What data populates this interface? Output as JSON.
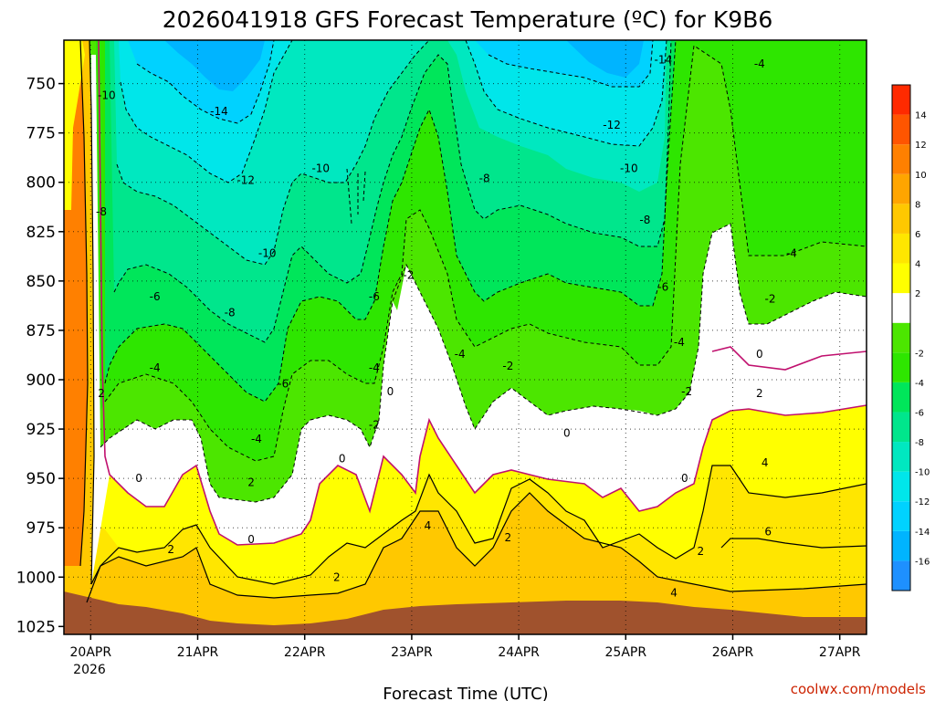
{
  "title": "2026041918 GFS Forecast Temperature (ºC) for K9B6",
  "credit": "coolwx.com/models",
  "chart_data": {
    "type": "heatmap",
    "title": "2026041918 GFS Forecast Temperature (ºC) for K9B6",
    "xlabel": "Forecast Time (UTC)",
    "ylabel": "",
    "x_ticks": [
      "20APR",
      "21APR",
      "22APR",
      "23APR",
      "24APR",
      "25APR",
      "26APR",
      "27APR"
    ],
    "x_year_label": "2026",
    "xlim_days": [
      19.75,
      27.25
    ],
    "y_ticks": [
      750,
      775,
      800,
      825,
      850,
      875,
      900,
      925,
      950,
      975,
      1000,
      1025
    ],
    "ylim_hPa": [
      728,
      1029
    ],
    "colorbar": {
      "ticks": [
        14,
        12,
        10,
        8,
        6,
        4,
        2,
        -2,
        -4,
        -6,
        -8,
        -10,
        -12,
        -14,
        -16
      ],
      "range": [
        -18,
        16
      ],
      "step": 2,
      "colors": [
        "#1e90ff",
        "#00b4ff",
        "#00d2ff",
        "#00e6ea",
        "#00e8c0",
        "#00e68c",
        "#00e65a",
        "#2ee600",
        "#4ce600",
        "#ffffff",
        "#ffff00",
        "#ffe600",
        "#ffc800",
        "#ffa500",
        "#ff8000",
        "#ff5500",
        "#ff2a00"
      ]
    },
    "contour_labels": [
      {
        "text": "-10",
        "x": 20.15,
        "y": 756
      },
      {
        "text": "-14",
        "x": 21.2,
        "y": 764
      },
      {
        "text": "-14",
        "x": 25.35,
        "y": 738
      },
      {
        "text": "-4",
        "x": 26.25,
        "y": 740
      },
      {
        "text": "-12",
        "x": 24.87,
        "y": 771
      },
      {
        "text": "-10",
        "x": 22.15,
        "y": 793
      },
      {
        "text": "-12",
        "x": 21.45,
        "y": 799
      },
      {
        "text": "-10",
        "x": 25.03,
        "y": 793
      },
      {
        "text": "-8",
        "x": 23.68,
        "y": 798
      },
      {
        "text": "-8",
        "x": 20.1,
        "y": 815
      },
      {
        "text": "-8",
        "x": 25.18,
        "y": 819
      },
      {
        "text": "-10",
        "x": 21.65,
        "y": 836
      },
      {
        "text": "-4",
        "x": 26.55,
        "y": 836
      },
      {
        "text": "-2",
        "x": 22.97,
        "y": 847
      },
      {
        "text": "-6",
        "x": 20.6,
        "y": 858
      },
      {
        "text": "-6",
        "x": 22.65,
        "y": 858
      },
      {
        "text": "-6",
        "x": 25.35,
        "y": 853
      },
      {
        "text": "-2",
        "x": 26.35,
        "y": 859
      },
      {
        "text": "-8",
        "x": 21.3,
        "y": 866
      },
      {
        "text": "-4",
        "x": 25.5,
        "y": 881
      },
      {
        "text": "0",
        "x": 26.25,
        "y": 887
      },
      {
        "text": "-4",
        "x": 23.45,
        "y": 887
      },
      {
        "text": "-2",
        "x": 23.9,
        "y": 893
      },
      {
        "text": "-4",
        "x": 20.6,
        "y": 894
      },
      {
        "text": "-4",
        "x": 22.65,
        "y": 894
      },
      {
        "text": "-6",
        "x": 21.8,
        "y": 902
      },
      {
        "text": "2",
        "x": 20.1,
        "y": 907
      },
      {
        "text": "0",
        "x": 22.8,
        "y": 906
      },
      {
        "text": "-2",
        "x": 25.57,
        "y": 906
      },
      {
        "text": "2",
        "x": 26.25,
        "y": 907
      },
      {
        "text": "-2",
        "x": 22.65,
        "y": 923
      },
      {
        "text": "0",
        "x": 24.45,
        "y": 927
      },
      {
        "text": "-4",
        "x": 21.55,
        "y": 930
      },
      {
        "text": "0",
        "x": 22.35,
        "y": 940
      },
      {
        "text": "4",
        "x": 26.3,
        "y": 942
      },
      {
        "text": "0",
        "x": 20.45,
        "y": 950
      },
      {
        "text": "2",
        "x": 21.5,
        "y": 952
      },
      {
        "text": "0",
        "x": 25.55,
        "y": 950
      },
      {
        "text": "4",
        "x": 23.15,
        "y": 974
      },
      {
        "text": "6",
        "x": 26.33,
        "y": 977
      },
      {
        "text": "2",
        "x": 23.9,
        "y": 980
      },
      {
        "text": "0",
        "x": 21.5,
        "y": 981
      },
      {
        "text": "2",
        "x": 20.75,
        "y": 986
      },
      {
        "text": "2",
        "x": 25.7,
        "y": 987
      },
      {
        "text": "2",
        "x": 22.3,
        "y": 1000
      },
      {
        "text": "4",
        "x": 25.45,
        "y": 1008
      }
    ]
  }
}
